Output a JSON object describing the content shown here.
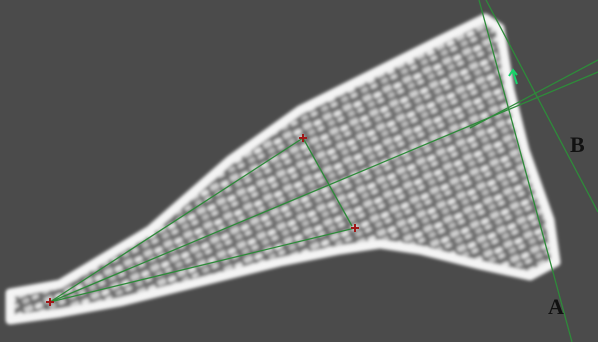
{
  "labels": {
    "a": "A",
    "b": "B"
  }
}
